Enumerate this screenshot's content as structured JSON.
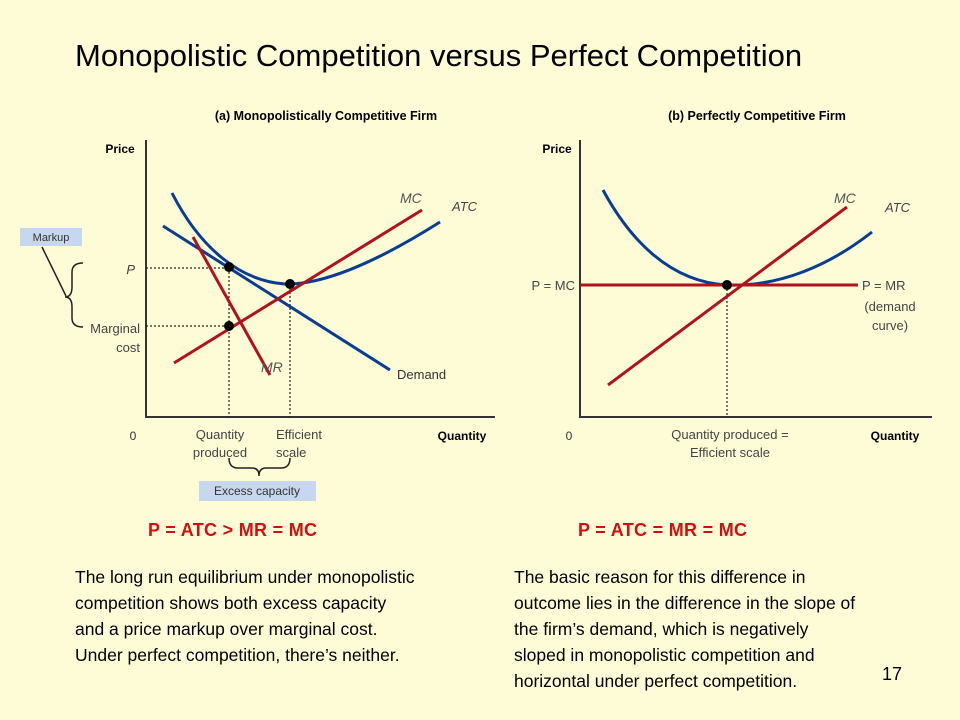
{
  "title": "Monopolistic Competition versus Perfect Competition",
  "panel_a": {
    "title": "(a) Monopolistically Competitive Firm",
    "y_axis": "Price",
    "x_axis": "Quantity",
    "origin": "0",
    "mc": "MC",
    "atc": "ATC",
    "mr": "MR",
    "demand": "Demand",
    "price": "P",
    "marginal_cost": [
      "Marginal",
      "cost"
    ],
    "quantity_produced": [
      "Quantity",
      "produced"
    ],
    "efficient_scale": [
      "Efficient",
      "scale"
    ],
    "markup": "Markup",
    "excess_capacity": "Excess capacity",
    "equation": "P = ATC > MR = MC"
  },
  "panel_b": {
    "title": "(b) Perfectly Competitive Firm",
    "y_axis": "Price",
    "x_axis": "Quantity",
    "origin": "0",
    "mc": "MC",
    "atc": "ATC",
    "price_label": "P = MC",
    "demand_label": [
      "P = MR",
      "(demand",
      "curve)"
    ],
    "quantity_label": [
      "Quantity produced =",
      "Efficient scale"
    ],
    "equation": "P = ATC = MR = MC"
  },
  "left_text": [
    "The long run equilibrium under monopolistic",
    "competition shows both excess capacity",
    "and a price markup over marginal cost.",
    "Under perfect competition, there’s neither."
  ],
  "right_text": [
    "The basic reason for this difference in",
    "outcome lies in the difference in the slope of",
    "the firm’s demand, which is negatively",
    "sloped in monopolistic competition and",
    "horizontal under perfect competition."
  ],
  "slide_number": "17",
  "colors": {
    "background": "#fdfcd6",
    "mc_line": "#b0121e",
    "atc_demand_line": "#0a3d91",
    "equation_text": "#d01010",
    "label_box": "#c7d7ee"
  }
}
